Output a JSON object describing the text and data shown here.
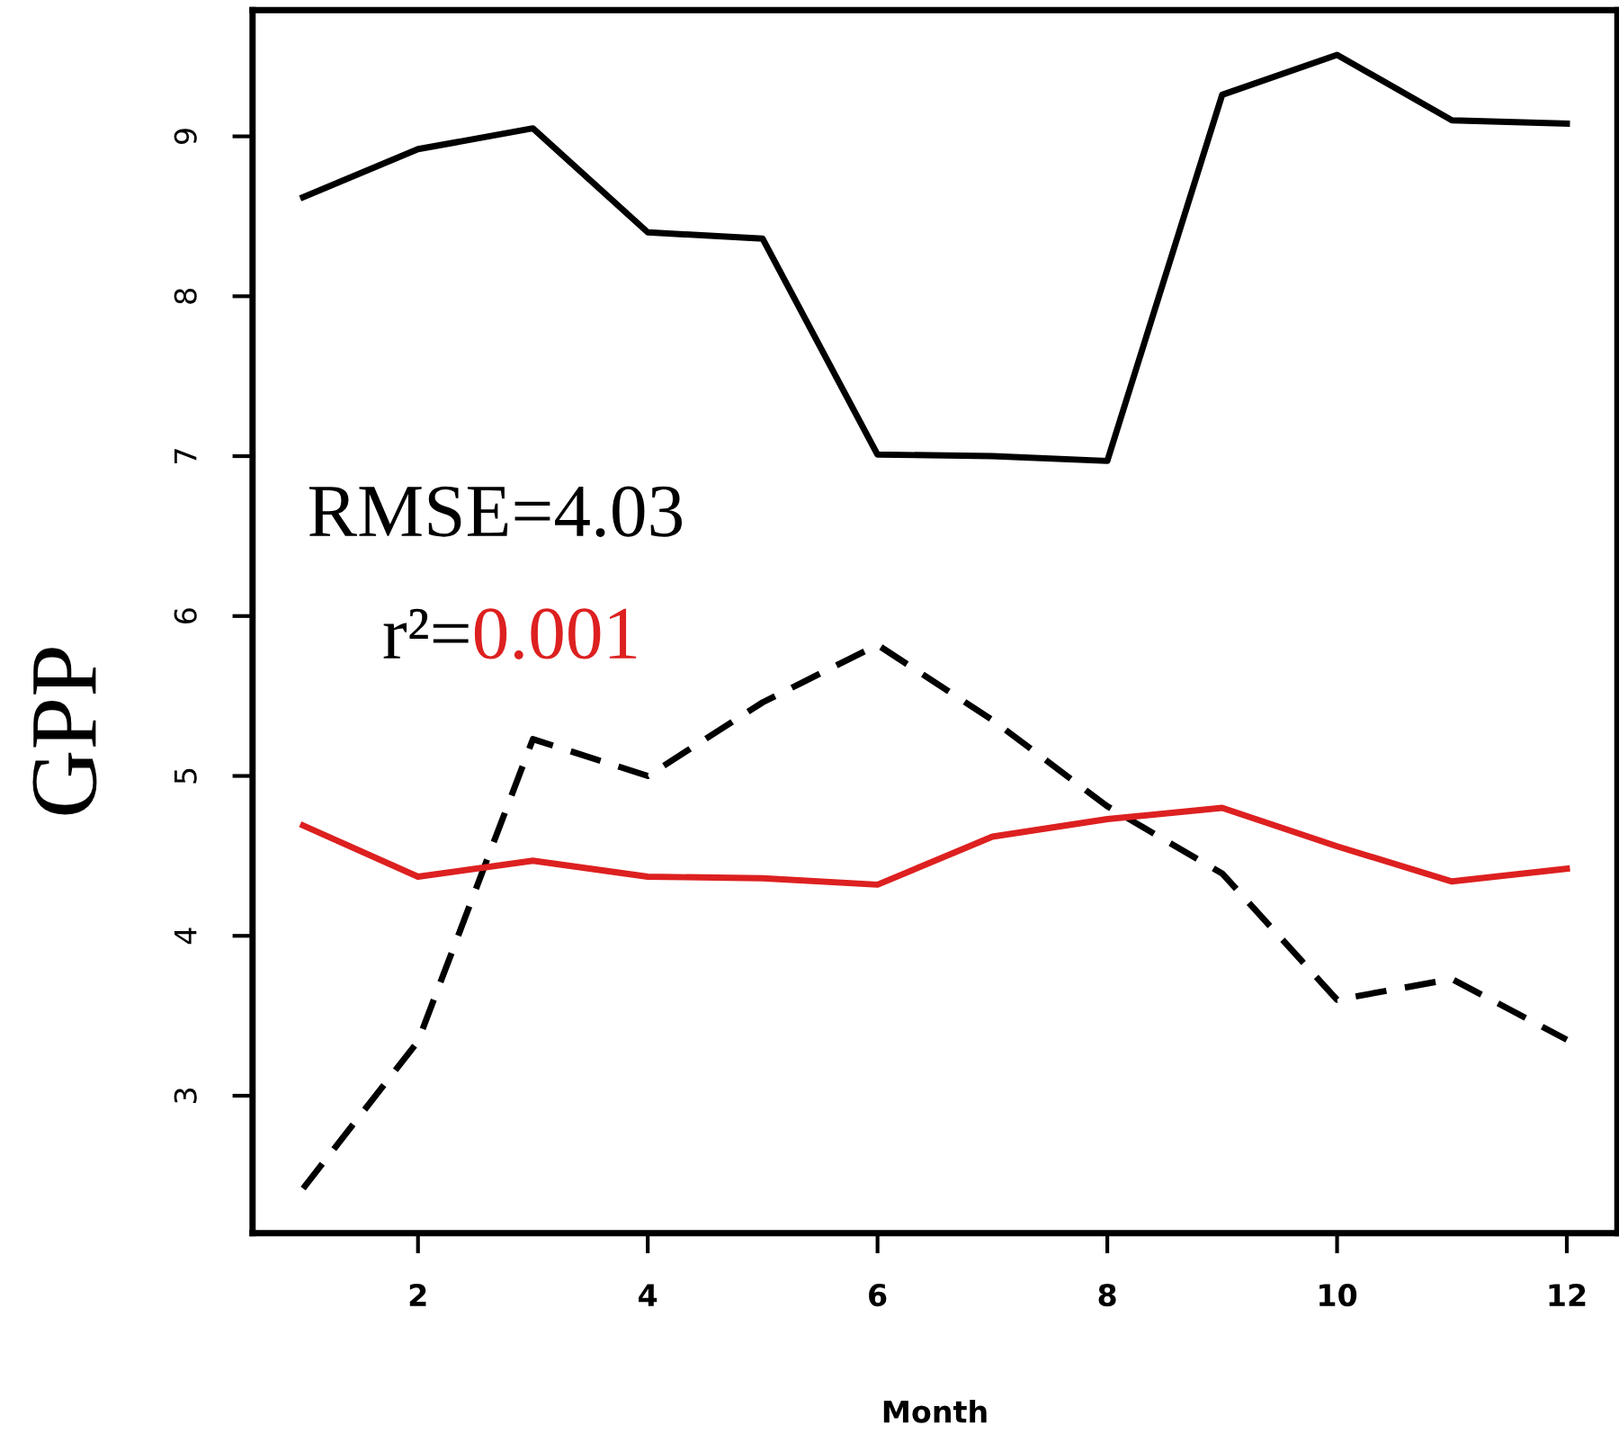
{
  "chart_data": {
    "type": "line",
    "xlabel": "Month",
    "ylabel": "GPP",
    "x": [
      1,
      2,
      3,
      4,
      5,
      6,
      7,
      8,
      9,
      10,
      11,
      12
    ],
    "series": [
      {
        "color": "#000000",
        "line_style": "solid",
        "values": [
          8.62,
          8.92,
          9.05,
          8.4,
          8.36,
          7.01,
          7.0,
          6.97,
          9.26,
          9.51,
          9.1,
          9.08
        ]
      },
      {
        "color": "#000000",
        "line_style": "dashed",
        "values": [
          2.42,
          3.34,
          5.23,
          5.0,
          5.46,
          5.82,
          5.35,
          4.81,
          4.39,
          3.6,
          3.73,
          3.35
        ]
      },
      {
        "color": "#dd2020",
        "line_style": "solid",
        "values": [
          4.69,
          4.37,
          4.47,
          4.37,
          4.36,
          4.32,
          4.62,
          4.73,
          4.8,
          4.56,
          4.34,
          4.42
        ]
      }
    ],
    "annotations": [
      "RMSE=4.03",
      "r²=",
      "0.001"
    ],
    "xlim": [
      0.56,
      12.44
    ],
    "xticks": [
      2,
      4,
      6,
      8,
      10,
      12
    ],
    "ylim": [
      2.14,
      9.79
    ],
    "yticks": [
      3,
      4,
      5,
      6,
      7,
      8,
      9
    ],
    "grid": false,
    "legend": false,
    "marker": "none"
  }
}
